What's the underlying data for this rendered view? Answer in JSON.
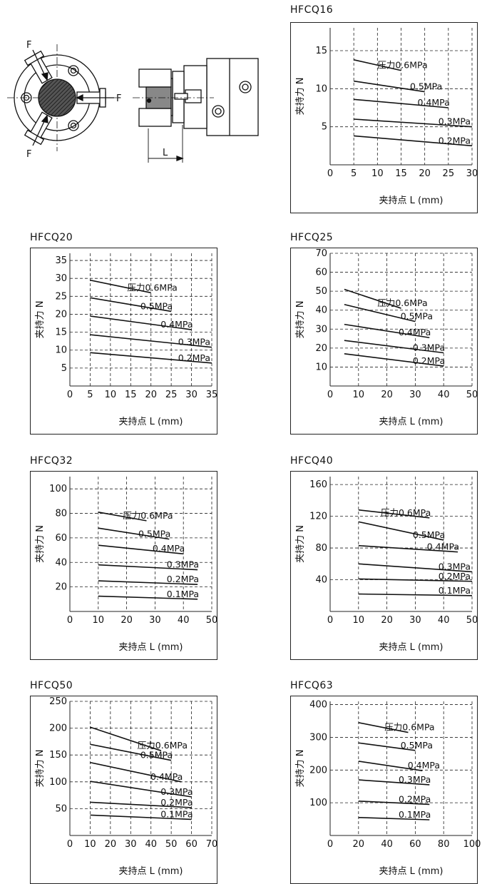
{
  "diagram": {
    "force_label": "F",
    "length_label": "L"
  },
  "chart_data": [
    {
      "type": "line",
      "title": "HFCQ16",
      "xlabel": "夹持点 L (mm)",
      "ylabel": "夹持力 N",
      "xlim": [
        0,
        30
      ],
      "ylim": [
        0,
        18
      ],
      "xticks": [
        0,
        5,
        10,
        15,
        20,
        25,
        30
      ],
      "yticks": [
        5,
        10,
        15
      ],
      "grid": true,
      "series": [
        {
          "name": "压力0.6MPa",
          "x": [
            5,
            15
          ],
          "y": [
            13.8,
            12.4
          ]
        },
        {
          "name": "0.5MPa",
          "x": [
            5,
            20
          ],
          "y": [
            11.0,
            9.6
          ]
        },
        {
          "name": "0.4MPa",
          "x": [
            5,
            25
          ],
          "y": [
            8.6,
            7.5
          ]
        },
        {
          "name": "0.3MPa",
          "x": [
            5,
            30
          ],
          "y": [
            6.0,
            5.0
          ]
        },
        {
          "name": "0.2MPa",
          "x": [
            5,
            30
          ],
          "y": [
            3.8,
            2.5
          ]
        }
      ]
    },
    {
      "type": "line",
      "title": "HFCQ20",
      "xlabel": "夹持点 L (mm)",
      "ylabel": "夹持力 N",
      "xlim": [
        0,
        35
      ],
      "ylim": [
        0,
        37
      ],
      "xticks": [
        0,
        5,
        10,
        15,
        20,
        25,
        30,
        35
      ],
      "yticks": [
        5,
        10,
        15,
        20,
        25,
        30,
        35
      ],
      "grid": true,
      "series": [
        {
          "name": "压力0.6MPa",
          "x": [
            5,
            20
          ],
          "y": [
            29.5,
            26.0
          ]
        },
        {
          "name": "0.5MPa",
          "x": [
            5,
            25
          ],
          "y": [
            24.6,
            20.8
          ]
        },
        {
          "name": "0.4MPa",
          "x": [
            5,
            30
          ],
          "y": [
            19.5,
            15.7
          ]
        },
        {
          "name": "0.3MPa",
          "x": [
            5,
            35
          ],
          "y": [
            14.3,
            10.8
          ]
        },
        {
          "name": "0.2MPa",
          "x": [
            5,
            35
          ],
          "y": [
            9.3,
            6.4
          ]
        }
      ]
    },
    {
      "type": "line",
      "title": "HFCQ25",
      "xlabel": "夹持点 L (mm)",
      "ylabel": "夹持力 N",
      "xlim": [
        0,
        50
      ],
      "ylim": [
        0,
        70
      ],
      "xticks": [
        0,
        10,
        20,
        30,
        40,
        50
      ],
      "yticks": [
        10,
        20,
        30,
        40,
        50,
        60,
        70
      ],
      "grid": true,
      "series": [
        {
          "name": "压力0.6MPa",
          "x": [
            5,
            25
          ],
          "y": [
            51.0,
            41.0
          ]
        },
        {
          "name": "0.5MPa",
          "x": [
            5,
            30
          ],
          "y": [
            43.0,
            34.0
          ]
        },
        {
          "name": "0.4MPa",
          "x": [
            5,
            35
          ],
          "y": [
            32.5,
            25.5
          ]
        },
        {
          "name": "0.3MPa",
          "x": [
            5,
            40
          ],
          "y": [
            24.0,
            17.5
          ]
        },
        {
          "name": "0.2MPa",
          "x": [
            5,
            40
          ],
          "y": [
            17.0,
            10.5
          ]
        }
      ]
    },
    {
      "type": "line",
      "title": "HFCQ32",
      "xlabel": "夹持点 L (mm)",
      "ylabel": "夹持力 N",
      "xlim": [
        0,
        50
      ],
      "ylim": [
        0,
        110
      ],
      "xticks": [
        0,
        10,
        20,
        30,
        40,
        50
      ],
      "yticks": [
        20,
        40,
        60,
        80,
        100
      ],
      "grid": true,
      "series": [
        {
          "name": "压力0.6MPa",
          "x": [
            10,
            27
          ],
          "y": [
            81,
            74
          ]
        },
        {
          "name": "0.5MPa",
          "x": [
            10,
            35
          ],
          "y": [
            68,
            59
          ]
        },
        {
          "name": "0.4MPa",
          "x": [
            10,
            40
          ],
          "y": [
            54,
            47
          ]
        },
        {
          "name": "0.3MPa",
          "x": [
            10,
            45
          ],
          "y": [
            38,
            34
          ]
        },
        {
          "name": "0.2MPa",
          "x": [
            10,
            45
          ],
          "y": [
            25,
            22
          ]
        },
        {
          "name": "0.1MPa",
          "x": [
            10,
            45
          ],
          "y": [
            12.5,
            10
          ]
        }
      ]
    },
    {
      "type": "line",
      "title": "HFCQ40",
      "xlabel": "夹持点 L (mm)",
      "ylabel": "夹持力 N",
      "xlim": [
        0,
        50
      ],
      "ylim": [
        0,
        170
      ],
      "xticks": [
        0,
        10,
        20,
        30,
        40,
        50
      ],
      "yticks": [
        40,
        80,
        120,
        160
      ],
      "grid": true,
      "series": [
        {
          "name": "压力0.6MPa",
          "x": [
            10,
            35
          ],
          "y": [
            128,
            118
          ]
        },
        {
          "name": "0.5MPa",
          "x": [
            10,
            40
          ],
          "y": [
            113,
            90
          ]
        },
        {
          "name": "0.4MPa",
          "x": [
            10,
            45
          ],
          "y": [
            83,
            75
          ]
        },
        {
          "name": "0.3MPa",
          "x": [
            10,
            50
          ],
          "y": [
            60,
            50
          ]
        },
        {
          "name": "0.2MPa",
          "x": [
            10,
            50
          ],
          "y": [
            41,
            38
          ]
        },
        {
          "name": "0.1MPa",
          "x": [
            10,
            50
          ],
          "y": [
            22,
            20
          ]
        }
      ]
    },
    {
      "type": "line",
      "title": "HFCQ50",
      "xlabel": "夹持点 L (mm)",
      "ylabel": "夹持力 N",
      "xlim": [
        0,
        70
      ],
      "ylim": [
        0,
        250
      ],
      "xticks": [
        0,
        10,
        20,
        30,
        40,
        50,
        60,
        70
      ],
      "yticks": [
        50,
        100,
        150,
        200,
        250
      ],
      "grid": true,
      "series": [
        {
          "name": "压力0.6MPa",
          "x": [
            10,
            45
          ],
          "y": [
            202,
            158
          ]
        },
        {
          "name": "0.5MPa",
          "x": [
            10,
            50
          ],
          "y": [
            170,
            140
          ]
        },
        {
          "name": "0.4MPa",
          "x": [
            10,
            55
          ],
          "y": [
            136,
            100
          ]
        },
        {
          "name": "0.3MPa",
          "x": [
            10,
            60
          ],
          "y": [
            101,
            72
          ]
        },
        {
          "name": "0.2MPa",
          "x": [
            10,
            60
          ],
          "y": [
            62,
            52
          ]
        },
        {
          "name": "0.1MPa",
          "x": [
            10,
            60
          ],
          "y": [
            38,
            30
          ]
        }
      ]
    },
    {
      "type": "line",
      "title": "HFCQ63",
      "xlabel": "夹持点 L (mm)",
      "ylabel": "夹持力 N",
      "xlim": [
        0,
        100
      ],
      "ylim": [
        0,
        410
      ],
      "xticks": [
        0,
        20,
        40,
        60,
        80,
        100
      ],
      "yticks": [
        100,
        200,
        300,
        400
      ],
      "grid": true,
      "series": [
        {
          "name": "压力0.6MPa",
          "x": [
            20,
            55
          ],
          "y": [
            345,
            315
          ]
        },
        {
          "name": "0.5MPa",
          "x": [
            20,
            60
          ],
          "y": [
            283,
            260
          ]
        },
        {
          "name": "0.4MPa",
          "x": [
            20,
            65
          ],
          "y": [
            227,
            198
          ]
        },
        {
          "name": "0.3MPa",
          "x": [
            20,
            70
          ],
          "y": [
            170,
            155
          ]
        },
        {
          "name": "0.2MPa",
          "x": [
            20,
            70
          ],
          "y": [
            105,
            95
          ]
        },
        {
          "name": "0.1MPa",
          "x": [
            20,
            70
          ],
          "y": [
            55,
            48
          ]
        }
      ]
    }
  ]
}
